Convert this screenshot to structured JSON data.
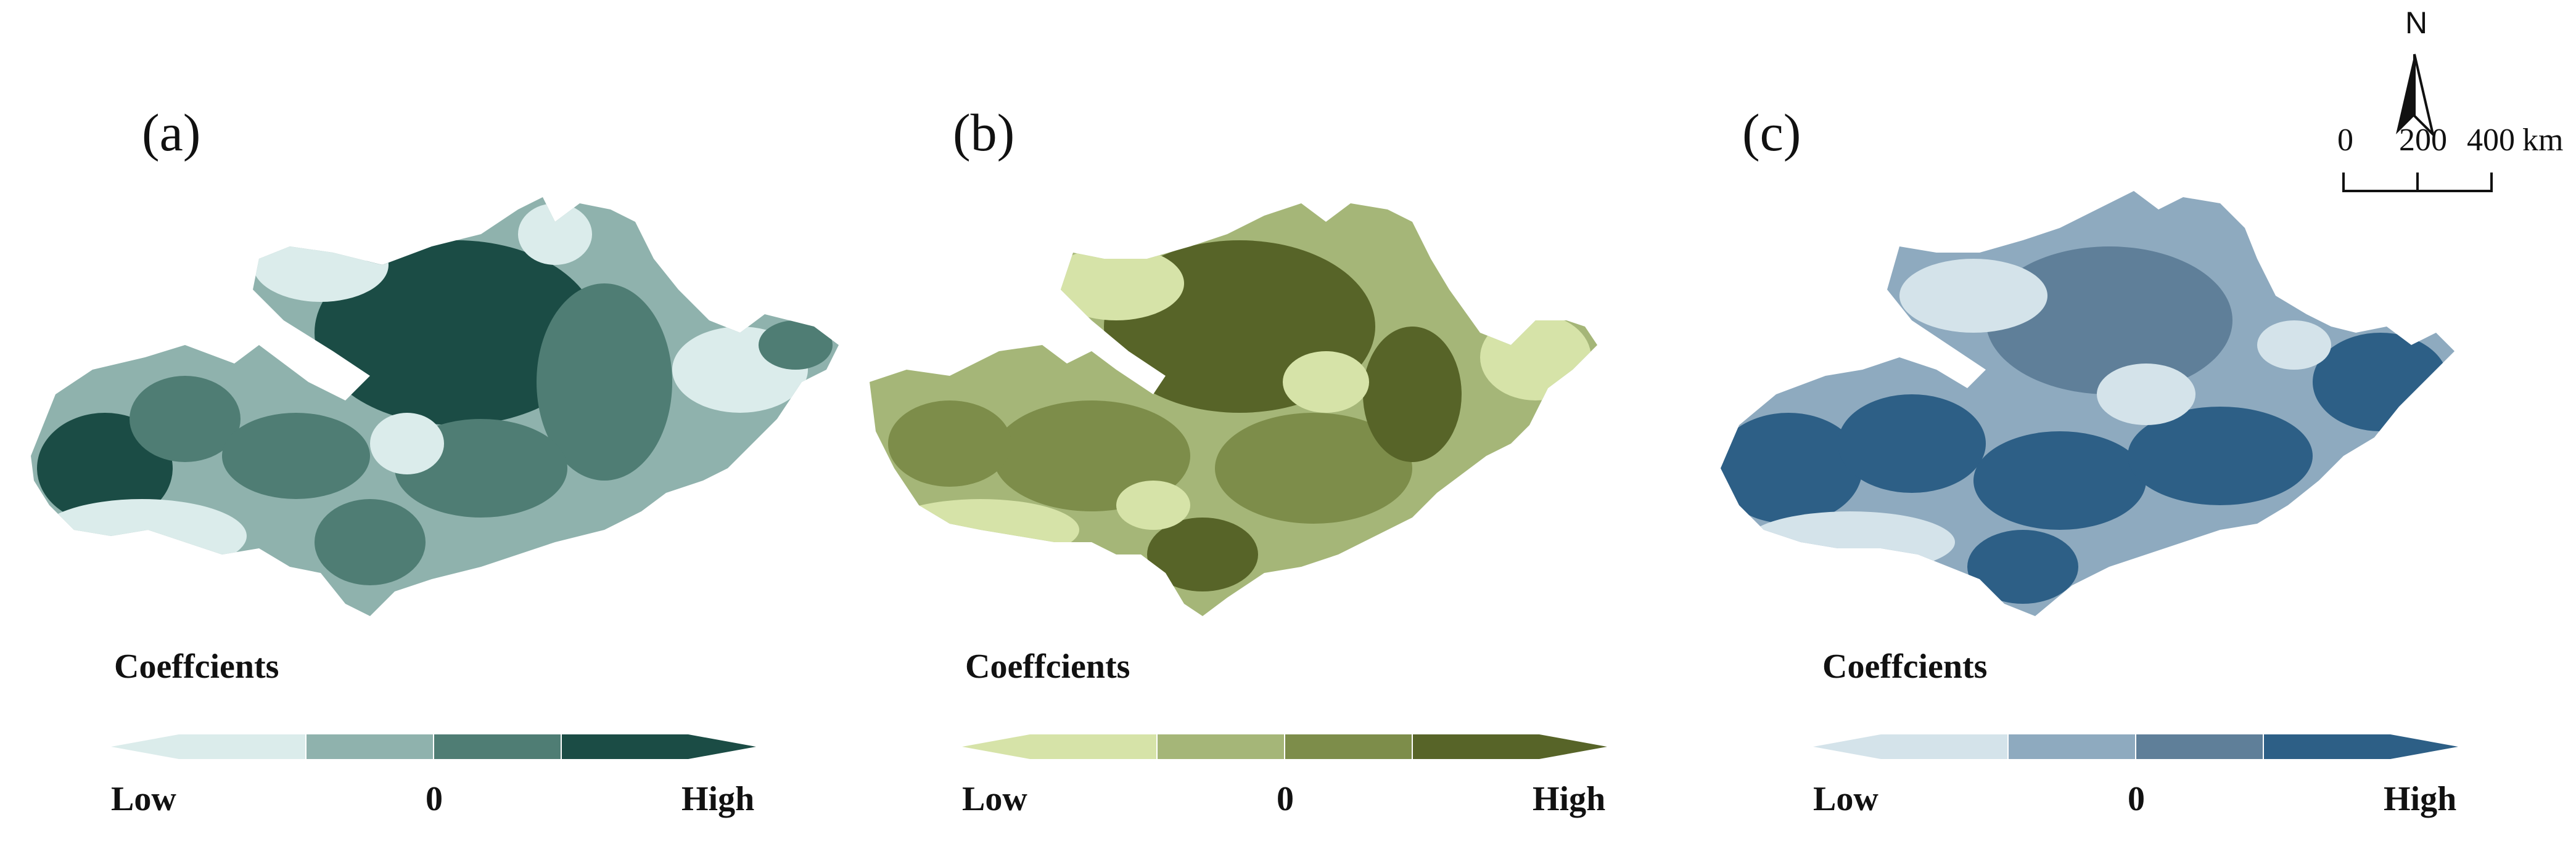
{
  "panels": [
    {
      "label": "(a)",
      "legend": {
        "title": "Coeffcients",
        "low": "Low",
        "mid": "0",
        "high": "High"
      },
      "colors": [
        "#dbeceb",
        "#8fb2ad",
        "#4f7d74",
        "#1b4c45"
      ]
    },
    {
      "label": "(b)",
      "legend": {
        "title": "Coeffcients",
        "low": "Low",
        "mid": "0",
        "high": "High"
      },
      "colors": [
        "#d6e3a8",
        "#a5b678",
        "#7d8d4a",
        "#576428"
      ]
    },
    {
      "label": "(c)",
      "legend": {
        "title": "Coeffcients",
        "low": "Low",
        "mid": "0",
        "high": "High"
      },
      "colors": [
        "#d4e3ea",
        "#8eaabf",
        "#5f7f99",
        "#2d5f86"
      ]
    }
  ],
  "north_arrow": {
    "label": "N"
  },
  "scale_bar": {
    "labels": [
      "0",
      "200",
      "400"
    ],
    "unit": "km"
  }
}
